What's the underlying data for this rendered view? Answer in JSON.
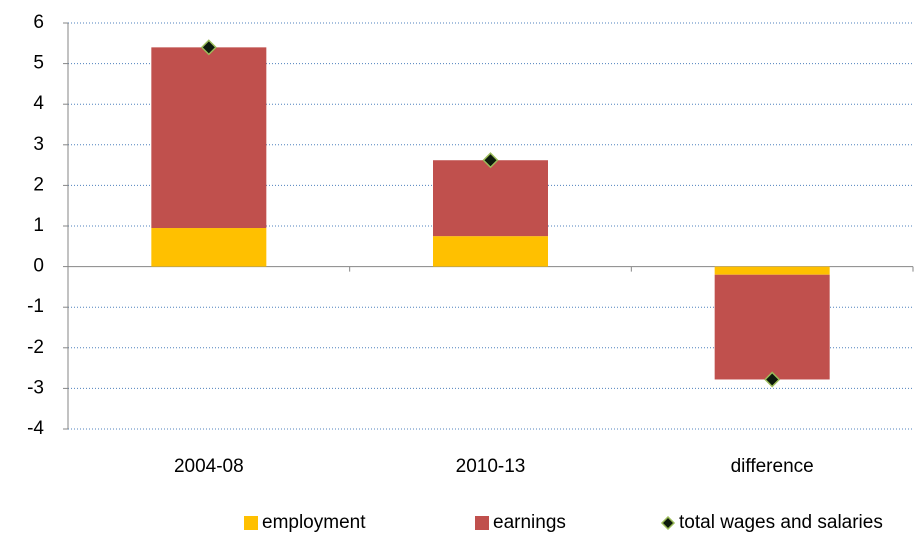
{
  "chart_data": {
    "type": "stacked-bar",
    "categories": [
      "2004-08",
      "2010-13",
      "difference"
    ],
    "series": [
      {
        "name": "employment",
        "type": "bar",
        "color": "#ffc000",
        "values": [
          0.95,
          0.75,
          -0.2
        ]
      },
      {
        "name": "earnings",
        "type": "bar",
        "color": "#c0504d",
        "values": [
          4.45,
          1.87,
          -2.58
        ]
      },
      {
        "name": "total wages and salaries",
        "type": "scatter",
        "color": "#0d1a0d",
        "values": [
          5.4,
          2.62,
          -2.78
        ]
      }
    ],
    "ylim": [
      -4,
      6
    ],
    "yticks": [
      -4,
      -3,
      -2,
      -1,
      0,
      1,
      2,
      3,
      4,
      5,
      6
    ],
    "grid": true
  }
}
